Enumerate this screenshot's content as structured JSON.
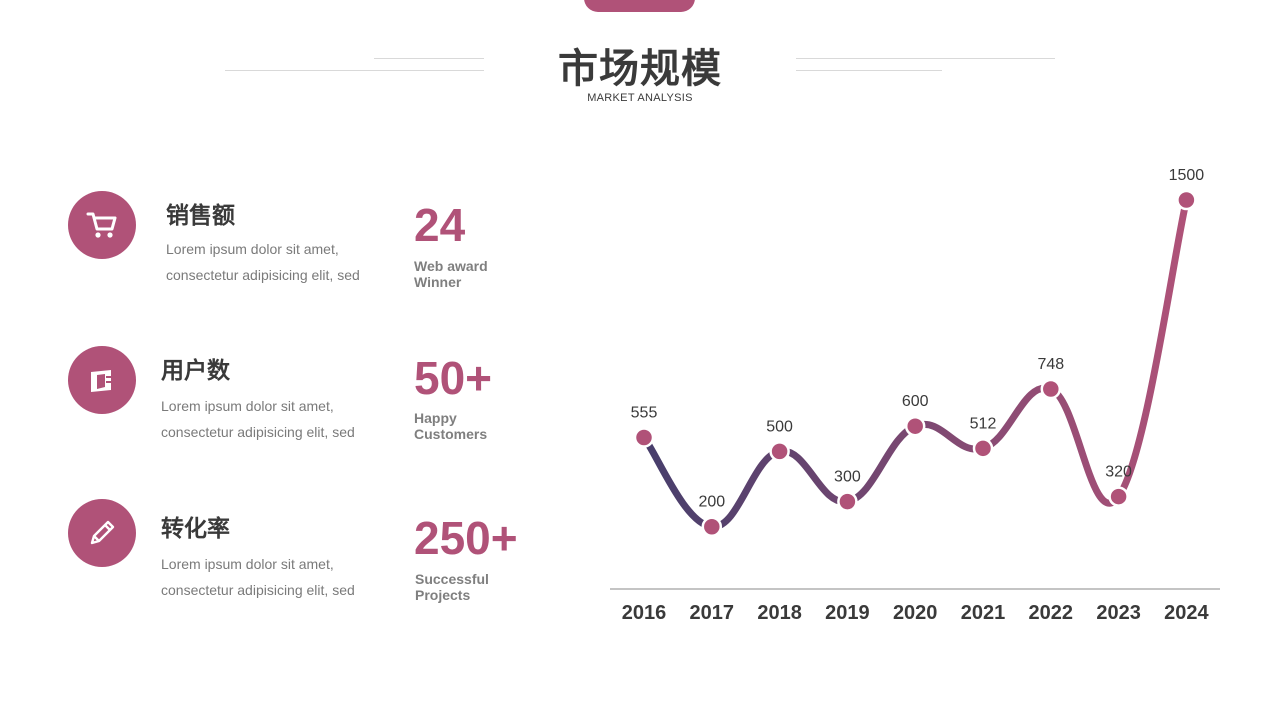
{
  "header": {
    "title": "市场规模",
    "subtitle": "MARKET ANALYSIS"
  },
  "colors": {
    "accent": "#b05278",
    "line_start": "#463e6b",
    "line_end": "#b05278"
  },
  "features": [
    {
      "icon": "shopping-cart-icon",
      "title": "销售额",
      "desc": "Lorem ipsum dolor sit amet, consectetur adipisicing elit, sed",
      "number": "24",
      "number_label": "Web award Winner"
    },
    {
      "icon": "wallet-icon",
      "title": "用户数",
      "desc": "Lorem ipsum dolor sit amet, consectetur adipisicing elit, sed",
      "number": "50+",
      "number_label": "Happy Customers"
    },
    {
      "icon": "pencil-icon",
      "title": "转化率",
      "desc": "Lorem ipsum dolor sit amet, consectetur adipisicing elit, sed",
      "number": "250+",
      "number_label": "Successful Projects"
    }
  ],
  "chart_data": {
    "type": "line",
    "categories": [
      "2016",
      "2017",
      "2018",
      "2019",
      "2020",
      "2021",
      "2022",
      "2023",
      "2024"
    ],
    "values": [
      555,
      200,
      500,
      300,
      600,
      512,
      748,
      320,
      1500
    ],
    "title": "",
    "xlabel": "",
    "ylabel": "",
    "grid": false,
    "smooth": true,
    "data_labels": true
  }
}
